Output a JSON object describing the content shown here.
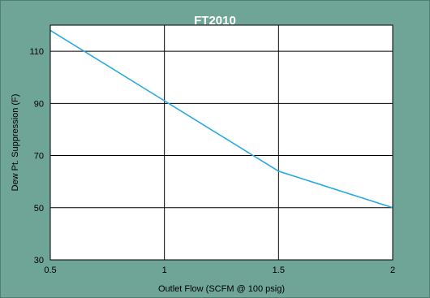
{
  "chart_data": {
    "type": "line",
    "title": "FT2010",
    "xlabel": "Outlet Flow (SCFM @ 100 psig)",
    "ylabel": "Dew Pt. Suppression (F)",
    "xlim": [
      0.5,
      2
    ],
    "ylim": [
      30,
      120
    ],
    "x_ticks": [
      0.5,
      1,
      1.5,
      2
    ],
    "x_tick_labels": [
      "0.5",
      "1",
      "1.5",
      "2"
    ],
    "y_ticks": [
      30,
      50,
      70,
      90,
      110
    ],
    "y_tick_labels": [
      "30",
      "50",
      "70",
      "90",
      "110"
    ],
    "grid": true,
    "colors": {
      "line": "#29aae1",
      "plot_bg": "#ffffff",
      "frame_bg": "#6fa596",
      "grid": "#000000"
    },
    "series": [
      {
        "x": [
          0.5,
          1,
          1.5,
          2
        ],
        "values": [
          118,
          91,
          64,
          50
        ]
      }
    ]
  }
}
